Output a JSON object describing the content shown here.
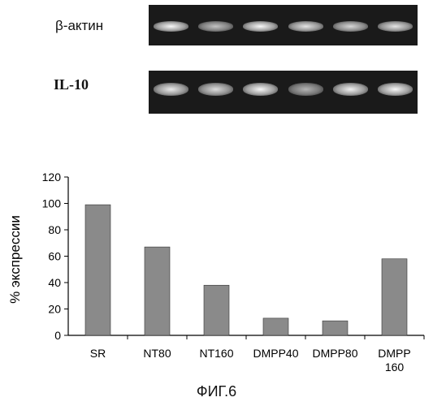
{
  "gel_panel": {
    "actin_label": "β-актин",
    "il10_label": "IL-10",
    "actin_band_intensities": [
      0.95,
      0.55,
      0.95,
      0.8,
      0.7,
      0.8
    ],
    "il10_band_intensities": [
      0.85,
      0.75,
      0.95,
      0.45,
      0.9,
      0.95
    ]
  },
  "chart_data": {
    "type": "bar",
    "categories": [
      "SR",
      "NT80",
      "NT160",
      "DMPP40",
      "DMPP80",
      "DMPP\n160"
    ],
    "values": [
      99,
      67,
      38,
      13,
      11,
      58
    ],
    "ylabel": "% экспрессии",
    "xlabel": "",
    "ylim": [
      0,
      120
    ],
    "yticks": [
      0,
      20,
      40,
      60,
      80,
      100,
      120
    ],
    "bar_color": "#8a8a8a",
    "grid": false
  },
  "caption": "ФИГ.6"
}
